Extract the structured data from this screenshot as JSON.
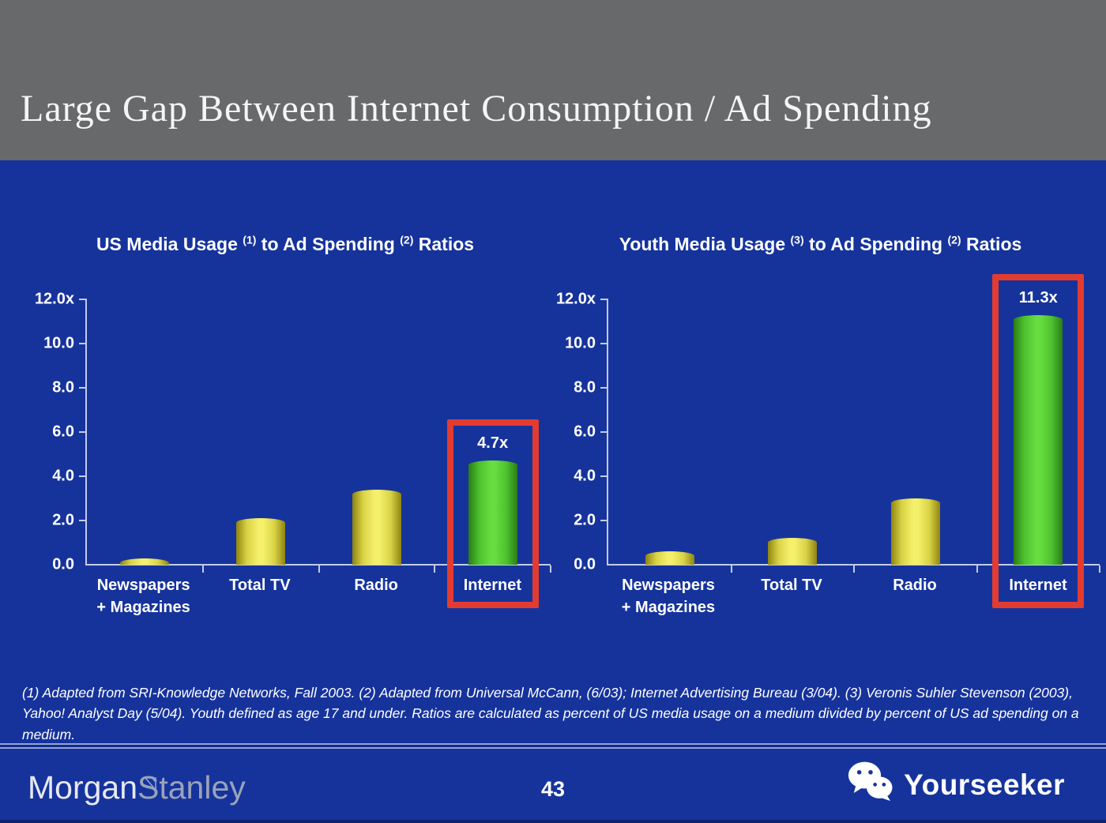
{
  "slide": {
    "title": "Large Gap Between Internet Consumption / Ad Spending",
    "page_number": "43",
    "footnote": "(1) Adapted from SRI-Knowledge Networks, Fall 2003.  (2) Adapted from Universal McCann, (6/03); Internet Advertising Bureau (3/04). (3) Veronis Suhler Stevenson (2003), Yahoo! Analyst Day (5/04).  Youth defined as age 17 and under.  Ratios are calculated as percent of US media usage on a medium divided by percent of US ad spending on a medium.",
    "brand": {
      "logo_part1": "Morgan",
      "logo_part2": "Stanley"
    },
    "watermark": {
      "label": "Yourseeker",
      "icon": "wechat-icon"
    }
  },
  "colors": {
    "background_blue": "#16339c",
    "header_gray": "#67696a",
    "bar_yellow_center": "#f4f06a",
    "bar_yellow_edge": "#8f8410",
    "bar_green_center": "#66dd40",
    "bar_green_edge": "#2b7d16",
    "highlight_red": "#e23c31",
    "axis_line": "#c2cce9",
    "text_white": "#ffffff"
  },
  "chart_data": [
    {
      "type": "bar",
      "title_parts": [
        "US Media Usage ",
        "(1)",
        " to Ad Spending ",
        "(2)",
        " Ratios"
      ],
      "categories": [
        "Newspapers\n+ Magazines",
        "Total TV",
        "Radio",
        "Internet"
      ],
      "values": [
        0.3,
        2.1,
        3.4,
        4.7
      ],
      "bar_colors": [
        "yellow",
        "yellow",
        "yellow",
        "green"
      ],
      "highlight_index": 3,
      "highlight_label": "4.7x",
      "ylim": [
        0,
        12
      ],
      "yticks": [
        "12.0x",
        "10.0",
        "8.0",
        "6.0",
        "4.0",
        "2.0",
        "0.0"
      ],
      "grid": false,
      "legend": false
    },
    {
      "type": "bar",
      "title_parts": [
        "Youth Media Usage ",
        "(3)",
        " to Ad Spending ",
        "(2)",
        " Ratios"
      ],
      "categories": [
        "Newspapers\n+ Magazines",
        "Total TV",
        "Radio",
        "Internet"
      ],
      "values": [
        0.6,
        1.2,
        3.0,
        11.3
      ],
      "bar_colors": [
        "yellow",
        "yellow",
        "yellow",
        "green"
      ],
      "highlight_index": 3,
      "highlight_label": "11.3x",
      "ylim": [
        0,
        12
      ],
      "yticks": [
        "12.0x",
        "10.0",
        "8.0",
        "6.0",
        "4.0",
        "2.0",
        "0.0"
      ],
      "grid": false,
      "legend": false
    }
  ]
}
